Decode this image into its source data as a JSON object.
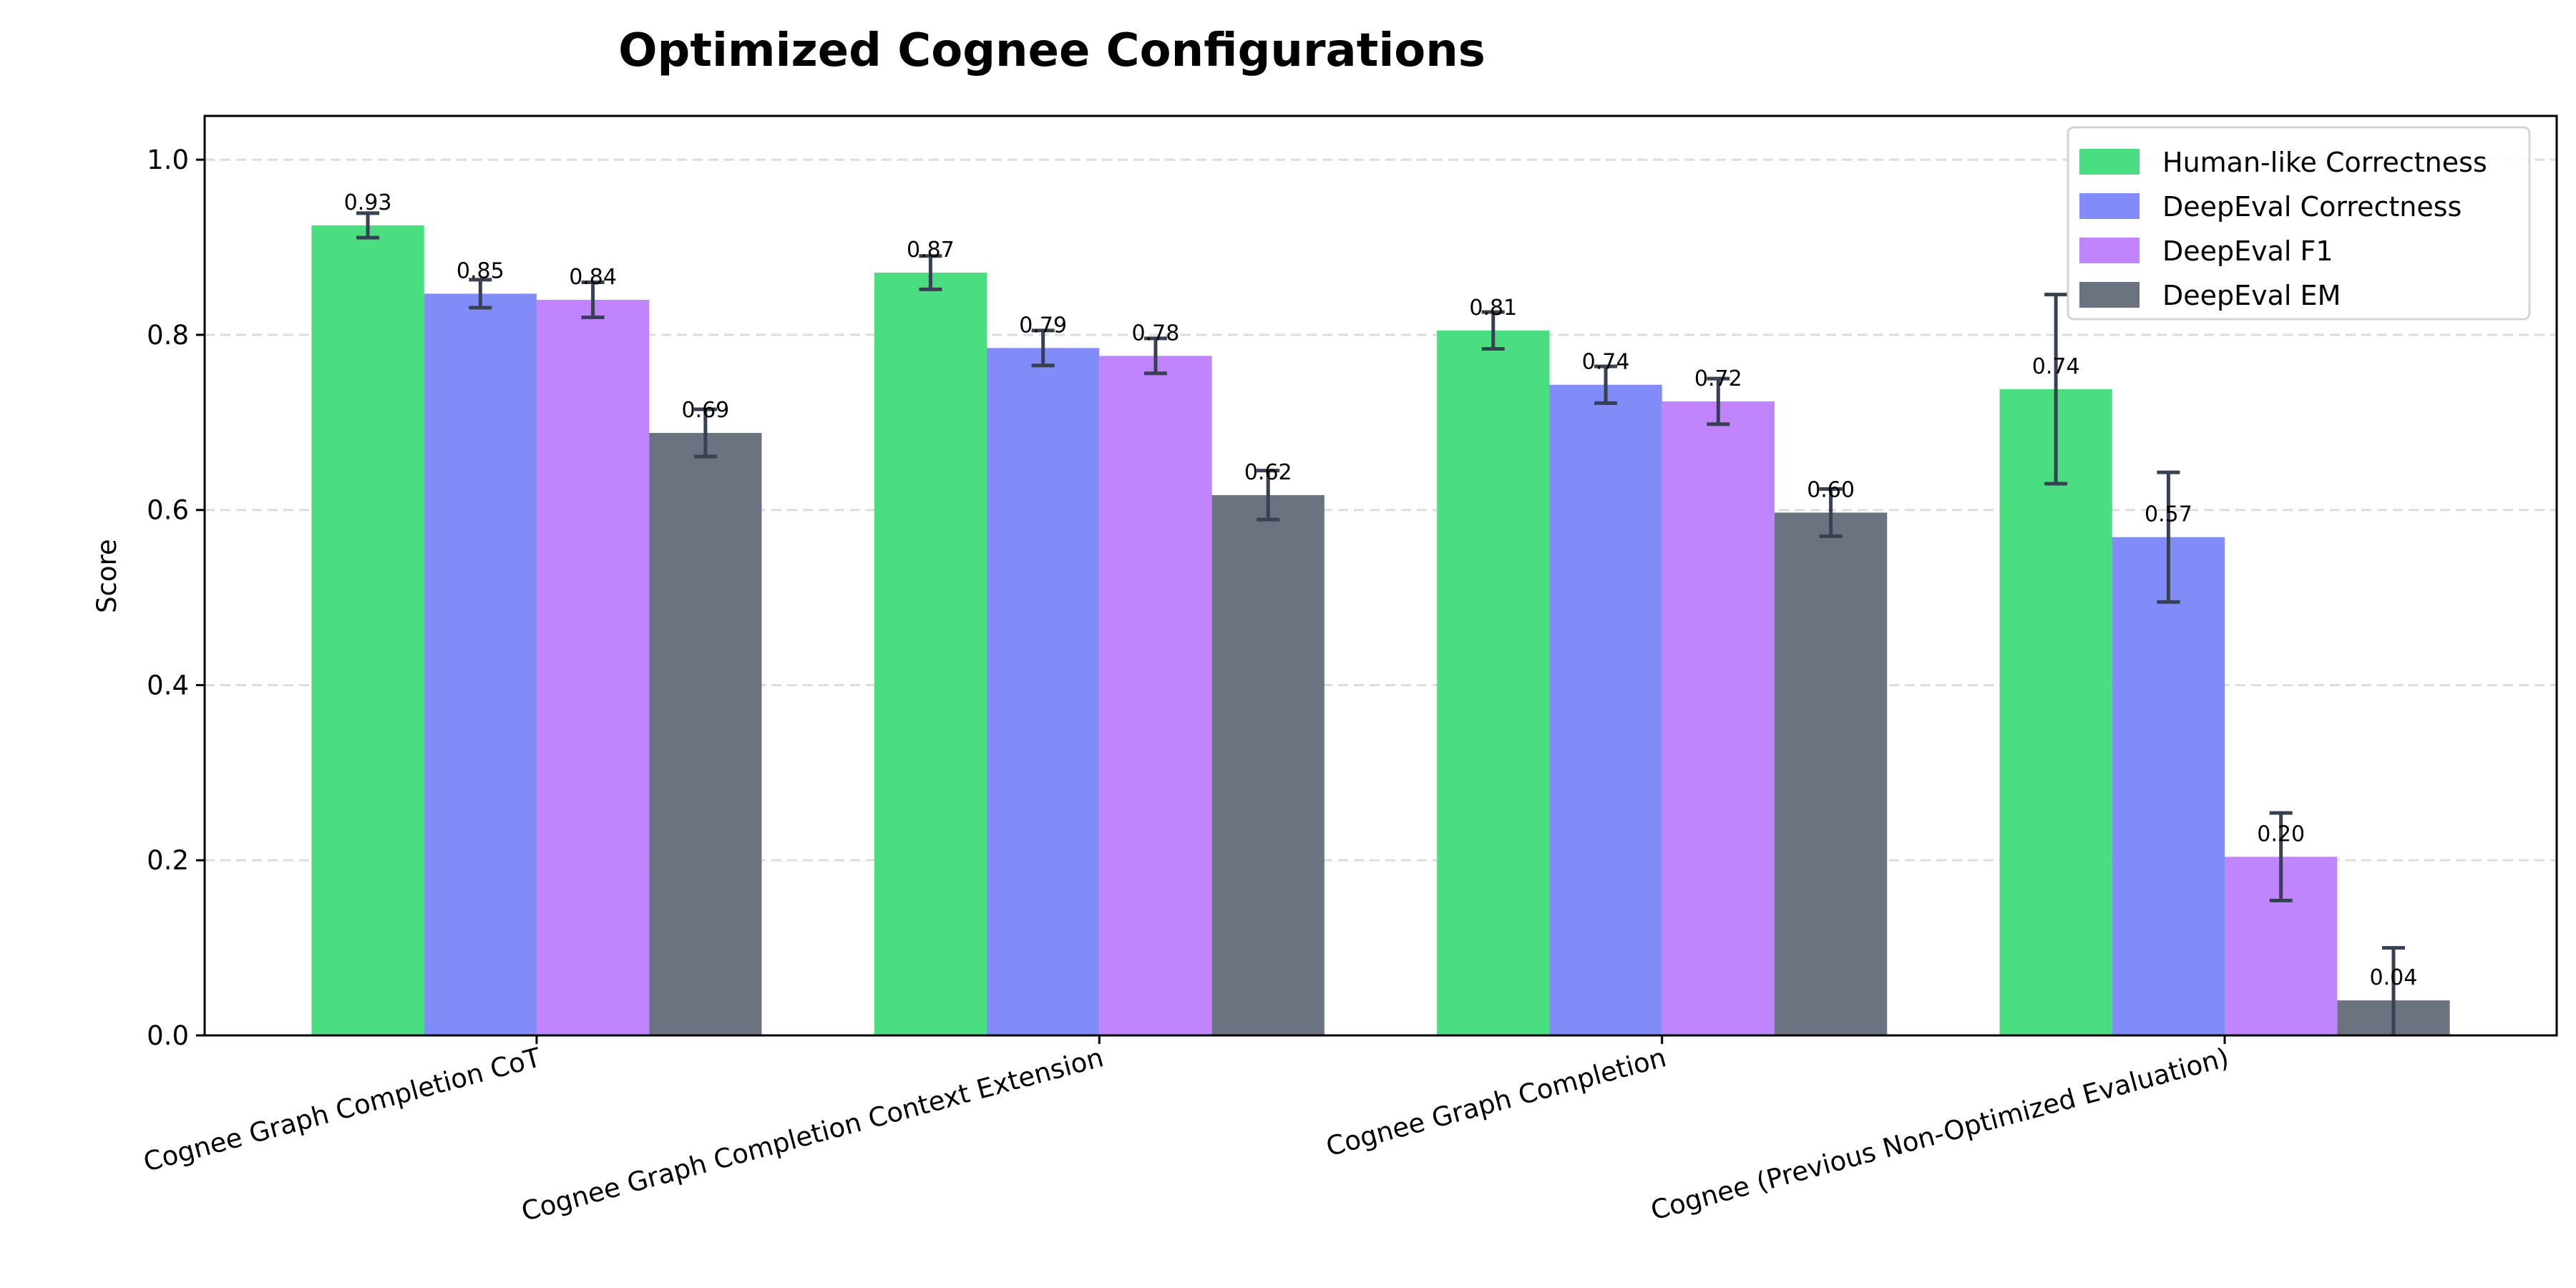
{
  "chart_data": {
    "type": "bar",
    "title": "Optimized Cognee Configurations",
    "xlabel": "",
    "ylabel": "Score",
    "ylim": [
      0,
      1.05
    ],
    "yticks": [
      "0.0",
      "0.2",
      "0.4",
      "0.6",
      "0.8",
      "1.0"
    ],
    "grid": "y dashed",
    "legend_position": "top-right",
    "categories": [
      "Cognee Graph Completion CoT",
      "Cognee Graph Completion Context Extension",
      "Cognee Graph Completion",
      "Cognee (Previous Non-Optimized Evaluation)"
    ],
    "series": [
      {
        "name": "Human-like Correctness",
        "color": "#4ade80",
        "values": [
          0.925,
          0.871,
          0.805,
          0.738
        ],
        "errors": [
          0.014,
          0.019,
          0.021,
          0.108
        ],
        "labels": [
          "0.93",
          "0.87",
          "0.81",
          "0.74"
        ]
      },
      {
        "name": "DeepEval Correctness",
        "color": "#818cf8",
        "values": [
          0.847,
          0.785,
          0.743,
          0.569
        ],
        "errors": [
          0.016,
          0.02,
          0.021,
          0.074
        ],
        "labels": [
          "0.85",
          "0.79",
          "0.74",
          "0.57"
        ]
      },
      {
        "name": "DeepEval F1",
        "color": "#c084fc",
        "values": [
          0.84,
          0.776,
          0.724,
          0.204
        ],
        "errors": [
          0.02,
          0.02,
          0.026,
          0.05
        ],
        "labels": [
          "0.84",
          "0.78",
          "0.72",
          "0.20"
        ]
      },
      {
        "name": "DeepEval EM",
        "color": "#6b7280",
        "values": [
          0.688,
          0.617,
          0.597,
          0.04
        ],
        "errors": [
          0.027,
          0.028,
          0.027,
          0.06
        ],
        "labels": [
          "0.69",
          "0.62",
          "0.60",
          "0.04"
        ]
      }
    ],
    "error_bar_color": "#374151"
  }
}
